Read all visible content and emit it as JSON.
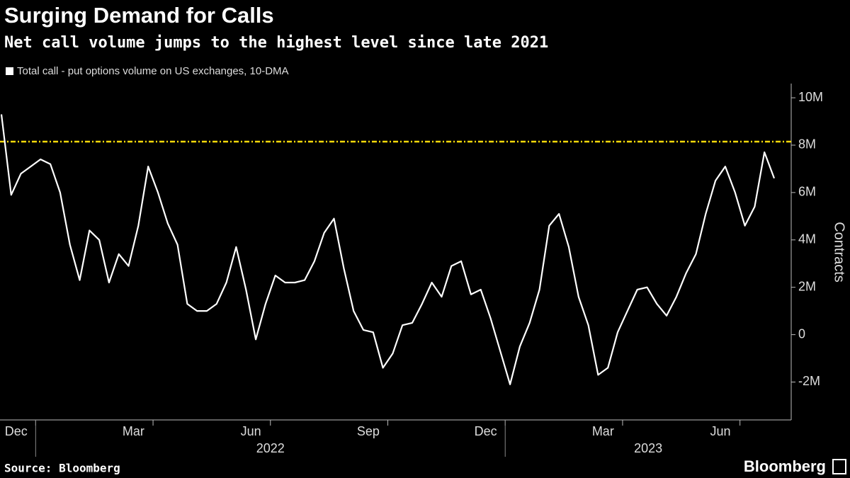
{
  "chart_data": {
    "type": "line",
    "title": "Surging Demand for Calls",
    "subtitle": "Net call volume jumps to the highest level since late 2021",
    "y_axis_label": "Contracts",
    "source": "Source: Bloomberg",
    "brand": "Bloomberg",
    "x": [
      "2021-12",
      "2021-12",
      "2021-12",
      "2021-12",
      "2022-01",
      "2022-01",
      "2022-01",
      "2022-01",
      "2022-02",
      "2022-02",
      "2022-02",
      "2022-02",
      "2022-03",
      "2022-03",
      "2022-03",
      "2022-03",
      "2022-04",
      "2022-04",
      "2022-04",
      "2022-04",
      "2022-05",
      "2022-05",
      "2022-05",
      "2022-05",
      "2022-06",
      "2022-06",
      "2022-06",
      "2022-06",
      "2022-07",
      "2022-07",
      "2022-07",
      "2022-07",
      "2022-08",
      "2022-08",
      "2022-08",
      "2022-08",
      "2022-09",
      "2022-09",
      "2022-09",
      "2022-09",
      "2022-10",
      "2022-10",
      "2022-10",
      "2022-10",
      "2022-11",
      "2022-11",
      "2022-11",
      "2022-11",
      "2022-12",
      "2022-12",
      "2022-12",
      "2022-12",
      "2023-01",
      "2023-01",
      "2023-01",
      "2023-01",
      "2023-02",
      "2023-02",
      "2023-02",
      "2023-02",
      "2023-03",
      "2023-03",
      "2023-03",
      "2023-03",
      "2023-04",
      "2023-04",
      "2023-04",
      "2023-04",
      "2023-05",
      "2023-05",
      "2023-05",
      "2023-05",
      "2023-06",
      "2023-06",
      "2023-06",
      "2023-06",
      "2023-07",
      "2023-07",
      "2023-07",
      "2023-07"
    ],
    "series": [
      {
        "name": "Total call - put options volume on US exchanges, 10-DMA",
        "color": "#ffffff",
        "values": [
          9.3,
          5.9,
          6.8,
          7.1,
          7.4,
          7.2,
          6.0,
          3.8,
          2.3,
          4.4,
          4.0,
          2.2,
          3.4,
          2.9,
          4.6,
          7.1,
          6.0,
          4.7,
          3.8,
          1.3,
          1.0,
          1.0,
          1.3,
          2.2,
          3.7,
          1.9,
          -0.2,
          1.3,
          2.5,
          2.2,
          2.2,
          2.3,
          3.1,
          4.3,
          4.9,
          2.8,
          1.0,
          0.2,
          0.1,
          -1.4,
          -0.8,
          0.4,
          0.5,
          1.3,
          2.2,
          1.6,
          2.9,
          3.1,
          1.7,
          1.9,
          0.7,
          -0.7,
          -2.1,
          -0.5,
          0.5,
          1.9,
          4.6,
          5.1,
          3.7,
          1.6,
          0.4,
          -1.7,
          -1.4,
          0.1,
          1.0,
          1.9,
          2.0,
          1.3,
          0.8,
          1.6,
          2.6,
          3.4,
          5.1,
          6.5,
          7.1,
          6.0,
          4.6,
          5.4,
          7.7,
          6.6
        ]
      }
    ],
    "reference_line": {
      "value": 8.15,
      "color": "#f5d90a"
    },
    "ylim": [
      -3.6,
      10.6
    ],
    "yticks": [
      {
        "value": -2,
        "label": "-2M"
      },
      0,
      {
        "value": 2,
        "label": "2M"
      },
      {
        "value": 4,
        "label": "4M"
      },
      {
        "value": 6,
        "label": "6M"
      },
      {
        "value": 8,
        "label": "8M"
      },
      {
        "value": 10,
        "label": "10M"
      }
    ],
    "xticks": [
      {
        "value": "2021-12",
        "label": "Dec"
      },
      {
        "value": "2022-03",
        "label": "Mar"
      },
      {
        "value": "2022-06",
        "label": "Jun"
      },
      {
        "value": "2022-09",
        "label": "Sep"
      },
      {
        "value": "2022-12",
        "label": "Dec"
      },
      {
        "value": "2023-03",
        "label": "Mar"
      },
      {
        "value": "2023-06",
        "label": "Jun"
      }
    ],
    "year_ticks": [
      "2022",
      "2023"
    ]
  }
}
